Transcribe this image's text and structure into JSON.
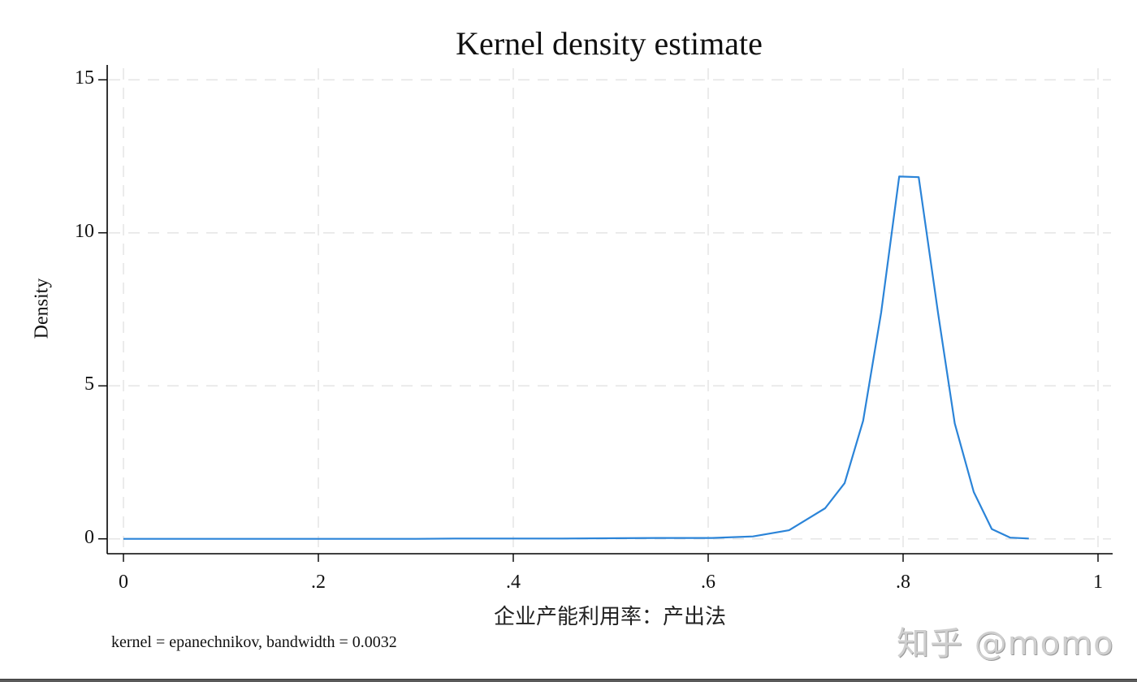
{
  "chart_data": {
    "type": "line",
    "title": "Kernel density estimate",
    "xlabel": "企业产能利用率：产出法",
    "ylabel": "Density",
    "note": "kernel = epanechnikov, bandwidth = 0.0032",
    "xlim": [
      0,
      1
    ],
    "ylim": [
      0,
      15
    ],
    "x_ticks": [
      0,
      0.2,
      0.4,
      0.6,
      0.8,
      1
    ],
    "x_tick_labels": [
      "0",
      ".2",
      ".4",
      ".6",
      ".8",
      "1"
    ],
    "y_ticks": [
      0,
      5,
      10,
      15
    ],
    "y_tick_labels": [
      "0",
      "5",
      "10",
      "15"
    ],
    "grid": true,
    "legend": null,
    "series": [
      {
        "name": "Density",
        "color": "#2b84d8",
        "x": [
          0.0,
          0.1,
          0.2,
          0.3,
          0.34,
          0.45,
          0.548,
          0.604,
          0.646,
          0.683,
          0.72,
          0.74,
          0.759,
          0.7775,
          0.796,
          0.816,
          0.836,
          0.853,
          0.8725,
          0.891,
          0.91,
          0.929
        ],
        "y": [
          0.0,
          0.0,
          0.0,
          0.0,
          0.01,
          0.01,
          0.03,
          0.03,
          0.08,
          0.28,
          1.0,
          1.82,
          3.86,
          7.4,
          11.84,
          11.82,
          7.35,
          3.77,
          1.53,
          0.32,
          0.04,
          0.01
        ]
      }
    ]
  },
  "watermark": "知乎 @momo",
  "colors": {
    "line": "#2b84d8",
    "grid": "#e6e6e6",
    "axis": "#000000"
  }
}
